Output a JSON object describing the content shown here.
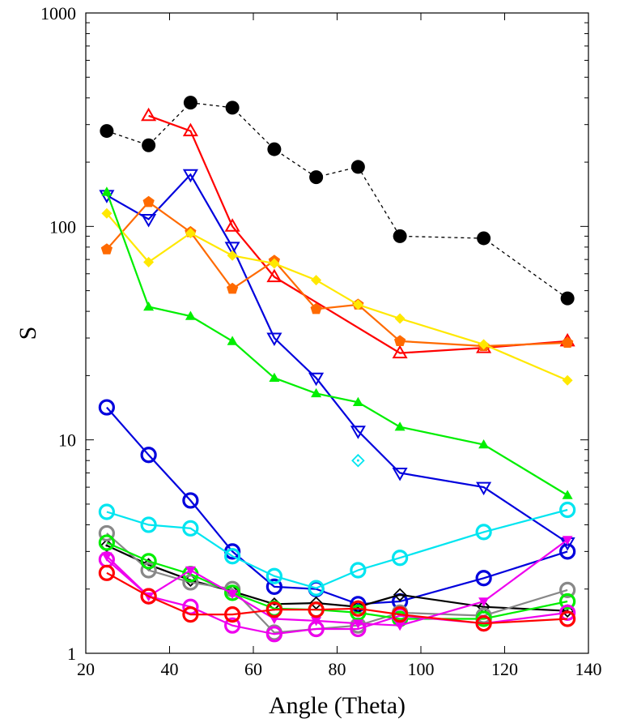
{
  "chart_data": {
    "type": "line",
    "xlabel": "Angle (Theta)",
    "ylabel": "S",
    "xlim": [
      20,
      140
    ],
    "ylim": [
      1,
      1000
    ],
    "yscale": "log",
    "xticks": [
      "20",
      "40",
      "60",
      "80",
      "100",
      "120",
      "140"
    ],
    "yticks": [
      "1",
      "10",
      "100",
      "1000"
    ],
    "grid": false,
    "legend": "none",
    "series": [
      {
        "color": "#000000",
        "marker": "circle-filled",
        "dashed": true,
        "x": [
          25,
          35,
          45,
          55,
          65,
          75,
          85,
          95,
          115,
          135
        ],
        "y": [
          280,
          240,
          380,
          360,
          230,
          170,
          190,
          90,
          88,
          46
        ]
      },
      {
        "color": "#ff0000",
        "marker": "triangle-up-open",
        "x": [
          35,
          45,
          55,
          65,
          95,
          115,
          135
        ],
        "y": [
          330,
          280,
          100,
          58,
          25.5,
          27,
          29
        ]
      },
      {
        "color": "#0000dd",
        "marker": "triangle-down-open",
        "x": [
          25,
          35,
          45,
          55,
          65,
          75,
          85,
          95,
          115,
          135
        ],
        "y": [
          140,
          108,
          175,
          80,
          30,
          19.5,
          11,
          7,
          6,
          3.3
        ]
      },
      {
        "color": "#ff6a00",
        "marker": "pentagon-filled",
        "x": [
          25,
          35,
          45,
          55,
          65,
          75,
          85,
          95,
          115,
          135
        ],
        "y": [
          78,
          130,
          94,
          51,
          69,
          41,
          43,
          29,
          27.5,
          28.5
        ]
      },
      {
        "color": "#ffe800",
        "marker": "diamond-filled",
        "x": [
          25,
          35,
          45,
          55,
          65,
          75,
          85,
          95,
          115,
          135
        ],
        "y": [
          115,
          68,
          93,
          73,
          67,
          56,
          43,
          37,
          28,
          19
        ]
      },
      {
        "color": "#00ee00",
        "marker": "triangle-up-filled",
        "x": [
          25,
          35,
          45,
          55,
          65,
          75,
          85,
          95,
          115,
          135
        ],
        "y": [
          145,
          42,
          38,
          29,
          19.5,
          16.5,
          15,
          11.5,
          9.5,
          5.5
        ]
      },
      {
        "color": "#0000dd",
        "marker": "circle-open",
        "x": [
          25,
          35,
          45,
          55,
          65,
          75,
          85,
          95,
          115,
          135
        ],
        "y": [
          14.2,
          8.5,
          5.2,
          3.0,
          2.05,
          2.0,
          1.7,
          1.75,
          2.25,
          3.0
        ]
      },
      {
        "color": "#00e5f0",
        "marker": "circle-open",
        "x": [
          25,
          35,
          45,
          55,
          65,
          75,
          85,
          95,
          115,
          135
        ],
        "y": [
          4.6,
          4.0,
          3.85,
          2.85,
          2.3,
          2.02,
          2.45,
          2.8,
          3.7,
          4.7
        ]
      },
      {
        "color": "#00e5f0",
        "marker": "diamond-open",
        "x": [
          85
        ],
        "y": [
          8.0
        ]
      },
      {
        "color": "#000000",
        "marker": "diamond-open",
        "x": [
          25,
          35,
          45,
          55,
          65,
          75,
          85,
          95,
          115,
          135
        ],
        "y": [
          3.2,
          2.6,
          2.2,
          1.95,
          1.7,
          1.72,
          1.65,
          1.88,
          1.65,
          1.58
        ]
      },
      {
        "color": "#888888",
        "marker": "circle-open",
        "x": [
          25,
          35,
          45,
          55,
          65,
          75,
          85,
          95,
          115,
          135
        ],
        "y": [
          3.65,
          2.45,
          2.15,
          2.0,
          1.25,
          1.3,
          1.35,
          1.55,
          1.5,
          1.98
        ]
      },
      {
        "color": "#00ee00",
        "marker": "circle-open",
        "x": [
          25,
          35,
          45,
          55,
          65,
          75,
          85,
          95,
          115,
          135
        ],
        "y": [
          3.3,
          2.7,
          2.35,
          1.92,
          1.62,
          1.6,
          1.55,
          1.45,
          1.45,
          1.75
        ]
      },
      {
        "color": "#ee00ee",
        "marker": "triangle-down-filled",
        "x": [
          25,
          35,
          45,
          55,
          65,
          75,
          85,
          95,
          115,
          135
        ],
        "y": [
          2.85,
          1.85,
          2.45,
          1.9,
          1.45,
          1.42,
          1.38,
          1.35,
          1.75,
          3.4
        ]
      },
      {
        "color": "#ee00ee",
        "marker": "circle-open",
        "x": [
          25,
          35,
          45,
          55,
          65,
          75,
          85,
          95,
          115,
          135
        ],
        "y": [
          2.75,
          1.85,
          1.65,
          1.35,
          1.23,
          1.3,
          1.3,
          1.5,
          1.38,
          1.55
        ]
      },
      {
        "color": "#ff0000",
        "marker": "circle-open",
        "x": [
          25,
          35,
          45,
          55,
          65,
          75,
          85,
          95,
          115,
          135
        ],
        "y": [
          2.38,
          1.85,
          1.52,
          1.52,
          1.6,
          1.6,
          1.62,
          1.52,
          1.38,
          1.45
        ]
      }
    ]
  }
}
